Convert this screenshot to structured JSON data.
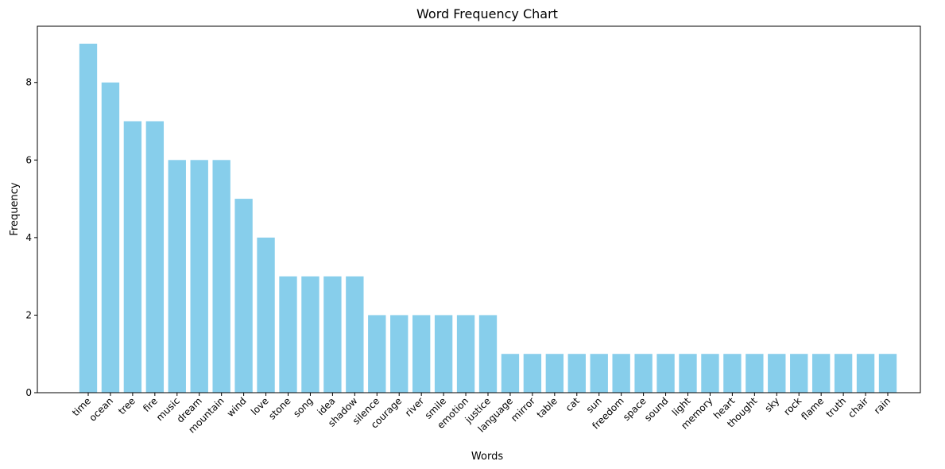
{
  "chart_data": {
    "type": "bar",
    "title": "Word Frequency Chart",
    "xlabel": "Words",
    "ylabel": "Frequency",
    "categories": [
      "time",
      "ocean",
      "tree",
      "fire",
      "music",
      "dream",
      "mountain",
      "wind",
      "love",
      "stone",
      "song",
      "idea",
      "shadow",
      "silence",
      "courage",
      "river",
      "smile",
      "emotion",
      "justice",
      "language",
      "mirror",
      "table",
      "cat",
      "sun",
      "freedom",
      "space",
      "sound",
      "light",
      "memory",
      "heart",
      "thought",
      "sky",
      "rock",
      "flame",
      "truth",
      "chair",
      "rain"
    ],
    "values": [
      9,
      8,
      7,
      7,
      6,
      6,
      6,
      5,
      4,
      3,
      3,
      3,
      3,
      2,
      2,
      2,
      2,
      2,
      2,
      1,
      1,
      1,
      1,
      1,
      1,
      1,
      1,
      1,
      1,
      1,
      1,
      1,
      1,
      1,
      1,
      1,
      1
    ],
    "ylim": [
      0,
      9.45
    ],
    "yticks": [
      0,
      2,
      4,
      6,
      8
    ],
    "grid": false,
    "bar_color": "#87CEEB"
  }
}
